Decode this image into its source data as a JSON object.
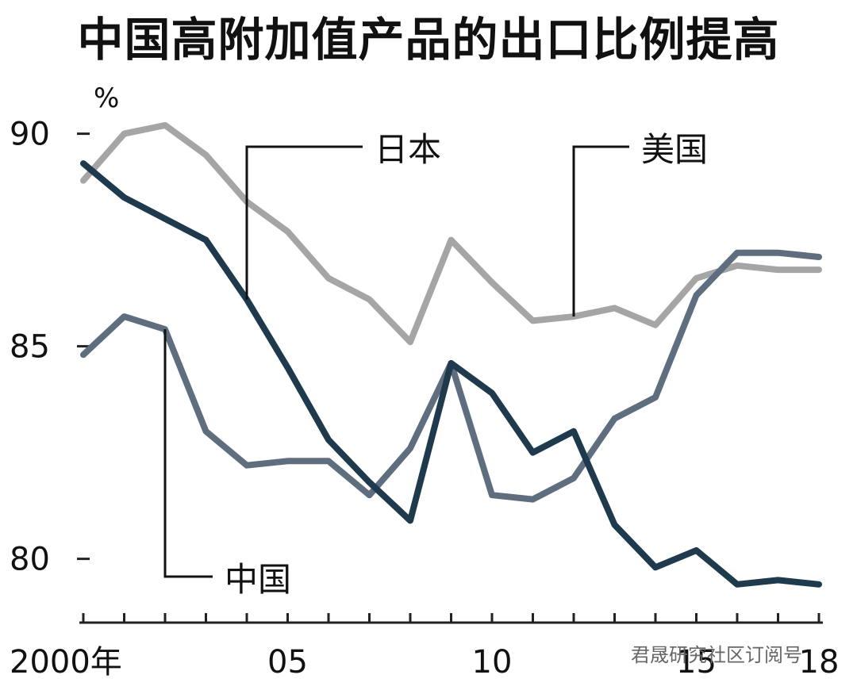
{
  "title": "中国高附加值产品的出口比例提高",
  "watermark": "君晟研究社区订阅号",
  "colors": {
    "china": "#5e6e7e",
    "japan": "#1f3a4d",
    "usa": "#a5a5a5",
    "axis": "#222222"
  },
  "chart_data": {
    "type": "line",
    "title": "中国高附加值产品的出口比例提高",
    "ylabel": "%",
    "xlabel": "",
    "ylim": [
      78.5,
      91
    ],
    "xlim": [
      2000,
      2018
    ],
    "yticks": [
      80,
      85,
      90
    ],
    "xticks": [
      {
        "value": 2000,
        "label": "2000年"
      },
      {
        "value": 2005,
        "label": "05"
      },
      {
        "value": 2010,
        "label": "10"
      },
      {
        "value": 2015,
        "label": "15"
      },
      {
        "value": 2018,
        "label": "18"
      }
    ],
    "grid": false,
    "x": [
      2000,
      2001,
      2002,
      2003,
      2004,
      2005,
      2006,
      2007,
      2008,
      2009,
      2010,
      2011,
      2012,
      2013,
      2014,
      2015,
      2016,
      2017,
      2018
    ],
    "series": [
      {
        "name": "美国",
        "key": "usa",
        "values": [
          88.9,
          90.0,
          90.2,
          89.5,
          88.4,
          87.7,
          86.6,
          86.1,
          85.1,
          87.5,
          86.5,
          85.6,
          85.7,
          85.9,
          85.5,
          86.6,
          86.9,
          86.8,
          86.8
        ]
      },
      {
        "name": "日本",
        "key": "japan",
        "values": [
          89.3,
          88.5,
          88.0,
          87.5,
          86.1,
          84.5,
          82.8,
          81.8,
          80.9,
          84.6,
          83.9,
          82.5,
          83.0,
          80.8,
          79.8,
          80.2,
          79.4,
          79.5,
          79.4
        ]
      },
      {
        "name": "中国",
        "key": "china",
        "values": [
          84.8,
          85.7,
          85.4,
          83.0,
          82.2,
          82.3,
          82.3,
          81.5,
          82.6,
          84.6,
          81.5,
          81.4,
          81.9,
          83.3,
          83.8,
          86.2,
          87.2,
          87.2,
          87.1
        ]
      }
    ]
  }
}
